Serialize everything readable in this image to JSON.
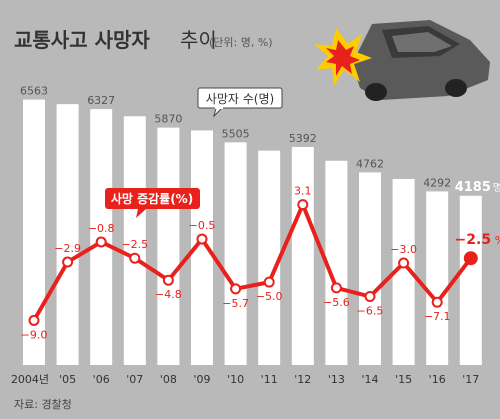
{
  "header": {
    "title_bold": "교통사고 사망자",
    "title_light": "추이",
    "unit": "(단위: 명, %)"
  },
  "labels": {
    "deaths_callout": "사망자 수(명)",
    "rate_callout": "사망 증감률(%)",
    "last_value_unit": "명",
    "last_rate_unit": "%"
  },
  "source": "자료: 경찰청",
  "icon": "car-crash-icon",
  "colors": {
    "background": "#b9b9b9",
    "bar": "#ffffff",
    "line": "#e8211c",
    "text_dark": "#333333",
    "text_light": "#ffffff",
    "title_accent": "#333333"
  },
  "chart_data": {
    "type": "bar",
    "categories": [
      "2004년",
      "'05",
      "'06",
      "'07",
      "'08",
      "'09",
      "'10",
      "'11",
      "'12",
      "'13",
      "'14",
      "'15",
      "'16",
      "'17"
    ],
    "series": [
      {
        "name": "사망자 수",
        "type": "bar",
        "values": [
          6563,
          null,
          6327,
          null,
          5870,
          null,
          5505,
          null,
          5392,
          null,
          4762,
          null,
          4292,
          4185
        ],
        "value_labels": [
          "6563",
          "",
          "6327",
          "",
          "5870",
          "",
          "5505",
          "",
          "5392",
          "",
          "4762",
          "",
          "4292",
          "4185"
        ]
      },
      {
        "name": "사망 증감률",
        "type": "line",
        "values": [
          -9.0,
          -2.9,
          -0.8,
          -2.5,
          -4.8,
          -0.5,
          -5.7,
          -5.0,
          3.1,
          -5.6,
          -6.5,
          -3.0,
          -7.1,
          -2.5
        ],
        "value_labels": [
          "−9.0",
          "−2.9",
          "−0.8",
          "−2.5",
          "−4.8",
          "−0.5",
          "−5.7",
          "−5.0",
          "3.1",
          "−5.6",
          "−6.5",
          "−3.0",
          "−7.1",
          "−2.5"
        ]
      }
    ],
    "bar_value_estimates": [
      6563,
      6450,
      6327,
      6150,
      5870,
      5800,
      5505,
      5300,
      5392,
      5050,
      4762,
      4600,
      4292,
      4185
    ],
    "bar_ylim": [
      0,
      6800
    ],
    "rate_ylim": [
      -10,
      4
    ],
    "legend": "none",
    "grid": false
  }
}
